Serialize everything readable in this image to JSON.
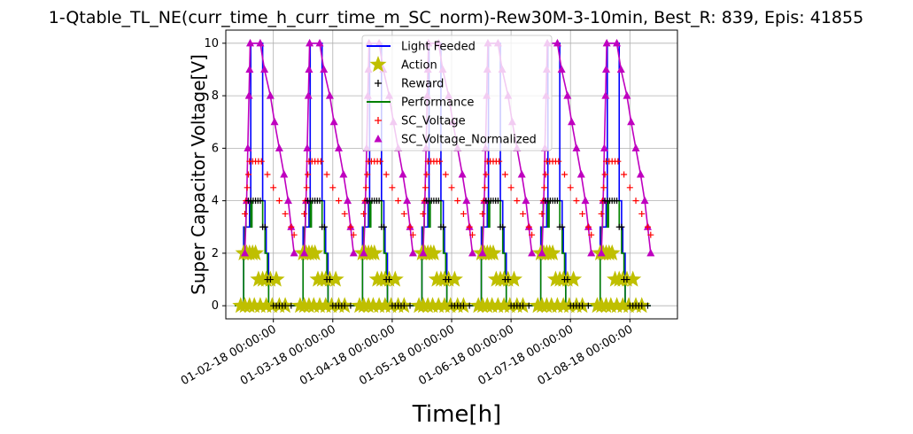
{
  "chart_data": {
    "type": "line",
    "title": "1-Qtable_TL_NE(curr_time_h_curr_time_m_SC_norm)-Rew30M-3-10min, Best_R: 839, Epis: 41855",
    "xlabel": "Time[h]",
    "ylabel": "Super Capacitor Voltage[V]",
    "xlim": [
      1.2,
      8.8
    ],
    "ylim": [
      -0.5,
      10.5
    ],
    "grid": true,
    "legend_position": "top-center",
    "x_ticks": [
      {
        "x": 2,
        "label": "01-02-18 00:00:00"
      },
      {
        "x": 3,
        "label": "01-03-18 00:00:00"
      },
      {
        "x": 4,
        "label": "01-04-18 00:00:00"
      },
      {
        "x": 5,
        "label": "01-05-18 00:00:00"
      },
      {
        "x": 6,
        "label": "01-06-18 00:00:00"
      },
      {
        "x": 7,
        "label": "01-07-18 00:00:00"
      },
      {
        "x": 8,
        "label": "01-08-18 00:00:00"
      }
    ],
    "y_ticks": [
      0,
      2,
      4,
      6,
      8,
      10
    ],
    "series": [
      {
        "name": "Light Feeded",
        "color": "#0000ff",
        "style": "line"
      },
      {
        "name": "Action",
        "color": "#bfbf00",
        "style": "star-marker"
      },
      {
        "name": "Reward",
        "color": "#000000",
        "style": "plus-marker"
      },
      {
        "name": "Performance",
        "color": "#008000",
        "style": "line"
      },
      {
        "name": "SC_Voltage",
        "color": "#ff0000",
        "style": "plus-marker"
      },
      {
        "name": "SC_Voltage_Normalized",
        "color": "#bf00bf",
        "style": "triangle-line"
      }
    ],
    "daily_pattern": {
      "start_day": 1.0,
      "days": 7,
      "light_feeded": [
        [
          0.35,
          0
        ],
        [
          0.45,
          0
        ],
        [
          0.5,
          3
        ],
        [
          0.55,
          3
        ],
        [
          0.6,
          4
        ],
        [
          0.62,
          10
        ],
        [
          0.8,
          10
        ],
        [
          0.82,
          4
        ],
        [
          0.86,
          3
        ],
        [
          0.88,
          2
        ],
        [
          0.92,
          0
        ],
        [
          1.35,
          0
        ]
      ],
      "sc_voltage_normalized": [
        [
          0.52,
          2
        ],
        [
          0.55,
          4
        ],
        [
          0.57,
          6
        ],
        [
          0.59,
          8
        ],
        [
          0.6,
          9
        ],
        [
          0.61,
          10
        ],
        [
          0.78,
          10
        ],
        [
          0.85,
          9
        ],
        [
          0.95,
          8
        ],
        [
          1.02,
          7
        ],
        [
          1.1,
          6
        ],
        [
          1.18,
          5
        ],
        [
          1.25,
          4
        ],
        [
          1.3,
          3
        ],
        [
          1.35,
          2
        ]
      ],
      "sc_voltage": [
        [
          0.52,
          3.5
        ],
        [
          0.54,
          4.0
        ],
        [
          0.56,
          4.5
        ],
        [
          0.58,
          5.0
        ],
        [
          0.6,
          5.5
        ],
        [
          0.65,
          5.5
        ],
        [
          0.7,
          5.5
        ],
        [
          0.75,
          5.5
        ],
        [
          0.8,
          5.5
        ],
        [
          0.9,
          5.0
        ],
        [
          1.0,
          4.5
        ],
        [
          1.1,
          4.0
        ],
        [
          1.2,
          3.5
        ],
        [
          1.3,
          3.0
        ],
        [
          1.35,
          2.7
        ]
      ],
      "performance": [
        [
          0.35,
          0
        ],
        [
          0.45,
          0
        ],
        [
          0.5,
          2
        ],
        [
          0.52,
          3
        ],
        [
          0.54,
          4
        ],
        [
          0.6,
          4
        ],
        [
          0.62,
          3
        ],
        [
          0.64,
          4
        ],
        [
          0.8,
          4
        ],
        [
          0.82,
          3
        ],
        [
          0.86,
          2
        ],
        [
          0.9,
          1
        ],
        [
          0.92,
          0
        ],
        [
          1.35,
          0
        ]
      ],
      "action": [
        [
          0.5,
          2
        ],
        [
          0.55,
          2
        ],
        [
          0.6,
          2
        ],
        [
          0.65,
          2
        ],
        [
          0.7,
          2
        ],
        [
          0.75,
          1
        ],
        [
          0.82,
          1
        ],
        [
          0.88,
          1
        ],
        [
          0.95,
          1
        ],
        [
          1.05,
          1
        ],
        [
          0.45,
          0
        ],
        [
          0.52,
          0
        ],
        [
          0.6,
          0
        ],
        [
          0.68,
          0
        ],
        [
          0.78,
          0
        ],
        [
          0.88,
          0
        ],
        [
          0.98,
          0
        ],
        [
          1.1,
          0
        ],
        [
          1.2,
          0
        ]
      ],
      "reward": [
        [
          0.58,
          4
        ],
        [
          0.62,
          4
        ],
        [
          0.66,
          4
        ],
        [
          0.7,
          4
        ],
        [
          0.74,
          4
        ],
        [
          0.78,
          4
        ],
        [
          0.82,
          3
        ],
        [
          0.86,
          3
        ],
        [
          0.9,
          1
        ],
        [
          0.95,
          1
        ],
        [
          1.0,
          0
        ],
        [
          1.05,
          0
        ],
        [
          1.1,
          0
        ],
        [
          1.15,
          0
        ],
        [
          1.2,
          0
        ],
        [
          1.3,
          0
        ]
      ]
    }
  }
}
